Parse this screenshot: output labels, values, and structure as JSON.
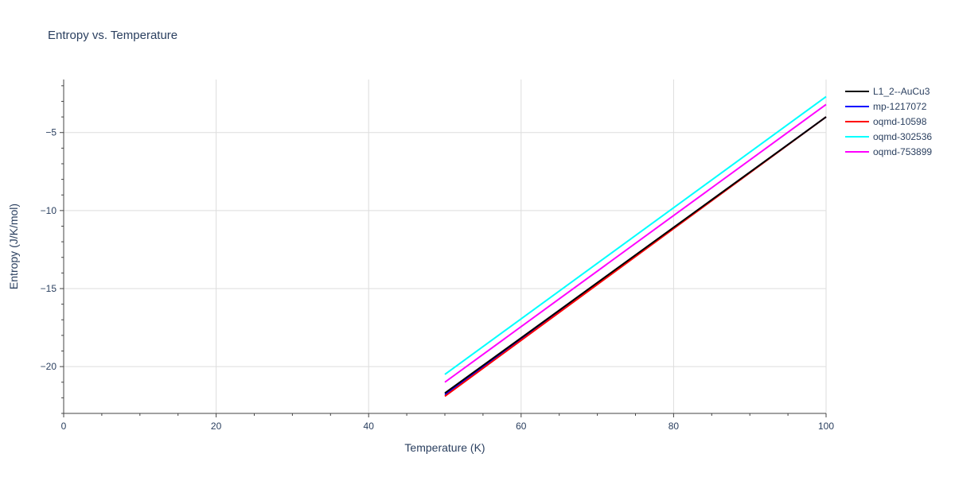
{
  "chart_data": {
    "type": "line",
    "title": "Entropy vs. Temperature",
    "xlabel": "Temperature (K)",
    "ylabel": "Entropy (J/K/mol)",
    "xlim": [
      0,
      100
    ],
    "ylim": [
      -23,
      -1.6
    ],
    "xticks": [
      0,
      20,
      40,
      60,
      80,
      100
    ],
    "xtick_labels": [
      "0",
      "20",
      "40",
      "60",
      "80",
      "100"
    ],
    "yticks": [
      -20,
      -15,
      -10,
      -5
    ],
    "ytick_labels": [
      "−20",
      "−15",
      "−10",
      "−5"
    ],
    "grid": true,
    "legend_position": "top-right",
    "series": [
      {
        "name": "L1_2--AuCu3",
        "color": "#000000",
        "x": [
          50,
          100
        ],
        "y": [
          -21.7,
          -4.0
        ]
      },
      {
        "name": "mp-1217072",
        "color": "#0000ff",
        "x": [
          50,
          100
        ],
        "y": [
          -21.8,
          -4.0
        ]
      },
      {
        "name": "oqmd-10598",
        "color": "#ff0000",
        "x": [
          50,
          100
        ],
        "y": [
          -21.9,
          -4.0
        ]
      },
      {
        "name": "oqmd-302536",
        "color": "#00ffff",
        "x": [
          50,
          100
        ],
        "y": [
          -20.5,
          -2.7
        ]
      },
      {
        "name": "oqmd-753899",
        "color": "#ff00ff",
        "x": [
          50,
          100
        ],
        "y": [
          -21.0,
          -3.2
        ]
      }
    ]
  }
}
